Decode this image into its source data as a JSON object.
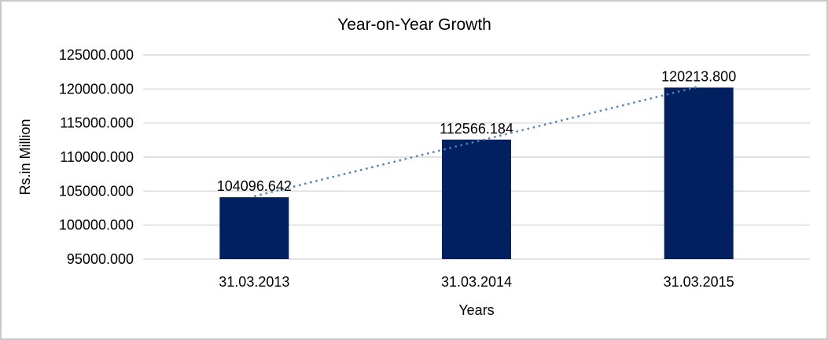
{
  "chart_data": {
    "type": "bar",
    "title": "Year-on-Year Growth",
    "xlabel": "Years",
    "ylabel": "Rs.in Million",
    "categories": [
      "31.03.2013",
      "31.03.2014",
      "31.03.2015"
    ],
    "values": [
      104096.642,
      112566.184,
      120213.8
    ],
    "value_labels": [
      "104096.642",
      "112566.184",
      "120213.800"
    ],
    "ylim": [
      95000,
      125000
    ],
    "ytick_step": 5000,
    "ytick_labels": [
      "95000.000",
      "100000.000",
      "105000.000",
      "110000.000",
      "115000.000",
      "120000.000",
      "125000.000"
    ],
    "grid": true,
    "legend": "none",
    "trendline": {
      "type": "linear",
      "style": "dotted"
    },
    "colors": {
      "bar": "#002060",
      "trendline": "#4f81bd",
      "gridline": "#d9d9d9",
      "text": "#000000",
      "background": "#ffffff",
      "frame_border": "#c9c9c9"
    }
  }
}
